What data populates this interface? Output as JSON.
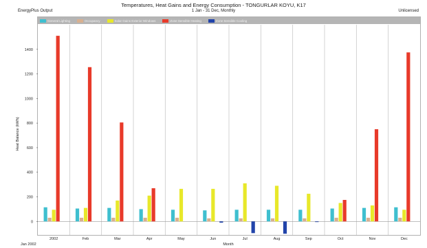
{
  "header": {
    "title": "Temperatures, Heat Gains and Energy Consumption - TONGURLAR KOYU, K17",
    "subtitle": "1 Jan - 31 Dec, Monthly",
    "left_label": "EnergyPlus Output",
    "right_label": "Unlicensed"
  },
  "chart_data": {
    "type": "bar",
    "title": "Temperatures, Heat Gains and Energy Consumption - TONGURLAR KOYU, K17",
    "subtitle": "1 Jan - 31 Dec, Monthly",
    "xlabel": "Month",
    "ylabel": "Heat Balance (kWh)",
    "corner_label": "Jan 2002",
    "categories": [
      "2002",
      "Feb",
      "Mar",
      "Apr",
      "May",
      "Jun",
      "Jul",
      "Aug",
      "Sep",
      "Oct",
      "Nov",
      "Dec"
    ],
    "ylim": [
      -110,
      1600
    ],
    "yticks": [
      0,
      200,
      400,
      600,
      800,
      1000,
      1200,
      1400
    ],
    "grid": {
      "vertical": true,
      "horizontal": false
    },
    "legend_position": "top",
    "series": [
      {
        "name": "General Lighting",
        "color": "#3fbfcf",
        "values": [
          115,
          105,
          110,
          100,
          95,
          90,
          95,
          95,
          95,
          105,
          110,
          115
        ]
      },
      {
        "name": "Occupancy",
        "color": "#d8b090",
        "values": [
          30,
          30,
          30,
          30,
          30,
          25,
          25,
          25,
          25,
          30,
          30,
          30
        ]
      },
      {
        "name": "Solar Gains Exterior Windows",
        "color": "#e8e82a",
        "values": [
          95,
          110,
          170,
          210,
          265,
          265,
          310,
          290,
          225,
          150,
          130,
          95
        ]
      },
      {
        "name": "Zone Sensible Heating",
        "color": "#e83a2a",
        "values": [
          1510,
          1255,
          805,
          270,
          0,
          0,
          0,
          0,
          0,
          175,
          750,
          1375
        ]
      },
      {
        "name": "Zone Sensible Cooling",
        "color": "#2244aa",
        "values": [
          0,
          0,
          0,
          0,
          0,
          -10,
          -95,
          -100,
          -5,
          0,
          0,
          0
        ]
      }
    ]
  }
}
